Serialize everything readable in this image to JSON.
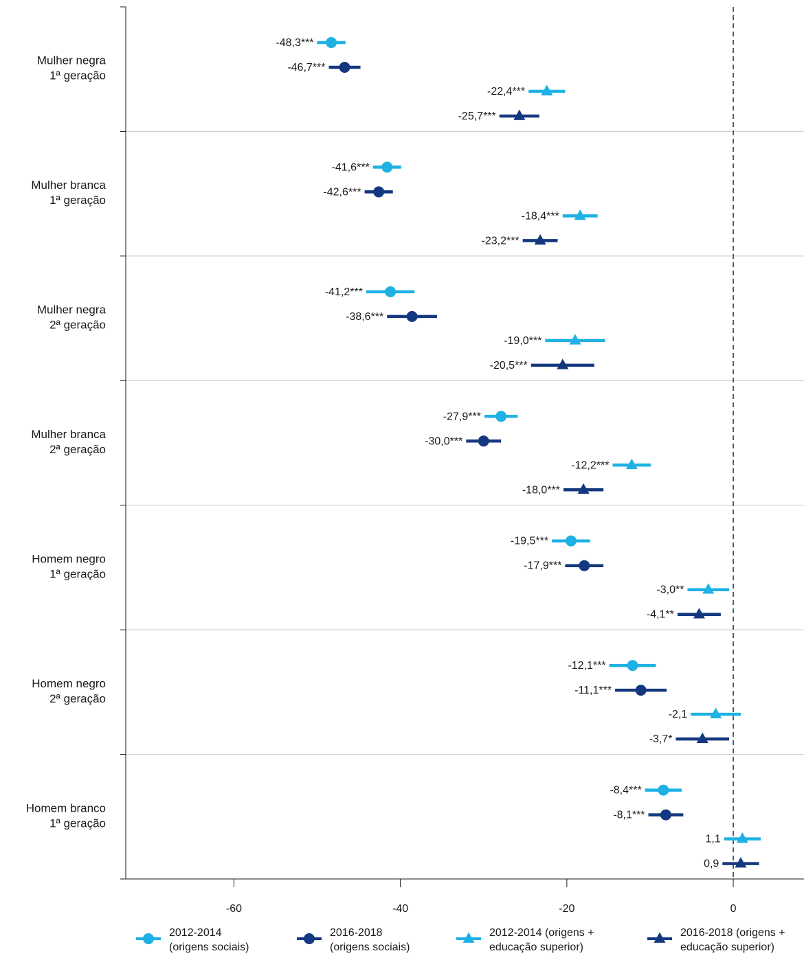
{
  "chart_data": {
    "type": "scatter",
    "subtype": "coefficient-plot",
    "title": "",
    "xlabel": "",
    "ylabel": "",
    "xlim": [
      -73,
      8.5
    ],
    "xticks": [
      -60,
      -40,
      -20,
      0
    ],
    "xtick_labels": [
      "-60",
      "-40",
      "-20",
      "0"
    ],
    "reference_line": {
      "x": 0,
      "style": "dashed",
      "color": "#1d3f7f"
    },
    "grid": "horizontal separators between groups",
    "legend_position": "bottom",
    "categories": [
      "Mulher negra\n1ª geração",
      "Mulher branca\n1ª geração",
      "Mulher negra\n2ª geração",
      "Mulher branca\n2ª geração",
      "Homem negro\n1ª geração",
      "Homem negro\n2ª geração",
      "Homem branco\n1ª geração"
    ],
    "series": [
      {
        "name": "2012-2014\n(origens sociais)",
        "marker": "circle",
        "color": "#1fb1e3",
        "values": [
          -48.3,
          -41.6,
          -41.2,
          -27.9,
          -19.5,
          -12.1,
          -8.4
        ],
        "ci_low": [
          -50.0,
          -43.3,
          -44.1,
          -29.9,
          -21.8,
          -14.9,
          -10.6
        ],
        "ci_high": [
          -46.6,
          -39.9,
          -38.3,
          -25.9,
          -17.2,
          -9.3,
          -6.2
        ],
        "labels": [
          "-48,3***",
          "-41,6***",
          "-41,2***",
          "-27,9***",
          "-19,5***",
          "-12,1***",
          "-8,4***"
        ]
      },
      {
        "name": "2016-2018\n(origens sociais)",
        "marker": "circle",
        "color": "#14387f",
        "values": [
          -46.7,
          -42.6,
          -38.6,
          -30.0,
          -17.9,
          -11.1,
          -8.1
        ],
        "ci_low": [
          -48.6,
          -44.3,
          -41.6,
          -32.1,
          -20.2,
          -14.2,
          -10.2
        ],
        "ci_high": [
          -44.8,
          -40.9,
          -35.6,
          -27.9,
          -15.6,
          -8.0,
          -6.0
        ],
        "labels": [
          "-46,7***",
          "-42,6***",
          "-38,6***",
          "-30,0***",
          "-17,9***",
          "-11,1***",
          "-8,1***"
        ]
      },
      {
        "name": "2012-2014 (origens +\neducação superior)",
        "marker": "triangle",
        "color": "#1fb1e3",
        "values": [
          -22.4,
          -18.4,
          -19.0,
          -12.2,
          -3.0,
          -2.1,
          1.1
        ],
        "ci_low": [
          -24.6,
          -20.5,
          -22.6,
          -14.5,
          -5.5,
          -5.1,
          -1.1
        ],
        "ci_high": [
          -20.2,
          -16.3,
          -15.4,
          -9.9,
          -0.5,
          0.9,
          3.3
        ],
        "labels": [
          "-22,4***",
          "-18,4***",
          "-19,0***",
          "-12,2***",
          "-3,0**",
          "-2,1",
          "1,1"
        ]
      },
      {
        "name": "2016-2018 (origens +\neducação superior)",
        "marker": "triangle",
        "color": "#14387f",
        "values": [
          -25.7,
          -23.2,
          -20.5,
          -18.0,
          -4.1,
          -3.7,
          0.9
        ],
        "ci_low": [
          -28.1,
          -25.3,
          -24.3,
          -20.4,
          -6.7,
          -6.9,
          -1.3
        ],
        "ci_high": [
          -23.3,
          -21.1,
          -16.7,
          -15.6,
          -1.5,
          -0.5,
          3.1
        ],
        "labels": [
          "-25,7***",
          "-23,2***",
          "-20,5***",
          "-18,0***",
          "-4,1**",
          "-3,7*",
          "0,9"
        ]
      }
    ]
  }
}
